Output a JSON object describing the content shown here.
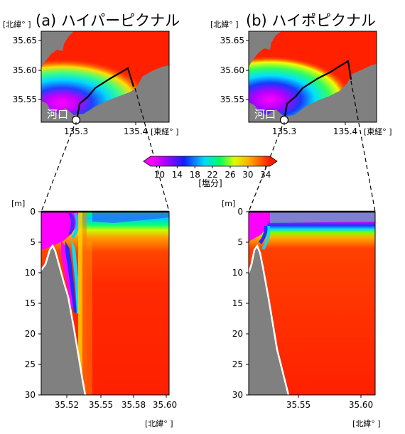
{
  "chart_data": [
    {
      "type": "heatmap",
      "panel": "(a)",
      "title": "(a) ハイパーピクナル",
      "ylabel": "[北緯° ]",
      "xlabel": "[東経° ]",
      "x_ticks": [
        "135.3",
        "135.4"
      ],
      "y_ticks": [
        "35.65",
        "35.60",
        "35.55"
      ],
      "xlim": [
        135.225,
        135.44
      ],
      "ylim": [
        35.525,
        35.665
      ],
      "annotation": "河口",
      "section_line": [
        [
          135.3,
          35.53
        ],
        [
          135.31,
          35.562
        ],
        [
          135.33,
          35.572
        ],
        [
          135.36,
          35.59
        ],
        [
          135.39,
          35.603
        ],
        [
          135.4,
          35.558
        ]
      ]
    },
    {
      "type": "heatmap",
      "panel": "(b)",
      "title": "(b) ハイポピクナル",
      "ylabel": "[北緯° ]",
      "xlabel": "[東経° ]",
      "x_ticks": [
        "135.3",
        "135.4"
      ],
      "y_ticks": [
        "35.65",
        "35.60",
        "35.55"
      ],
      "xlim": [
        135.225,
        135.44
      ],
      "ylim": [
        35.525,
        35.665
      ],
      "annotation": "河口",
      "section_line": [
        [
          135.3,
          35.53
        ],
        [
          135.31,
          35.562
        ],
        [
          135.33,
          35.572
        ],
        [
          135.36,
          35.59
        ],
        [
          135.39,
          35.603
        ],
        [
          135.4,
          35.558
        ]
      ]
    },
    {
      "type": "heatmap",
      "panel": "(a) section",
      "ylabel": "[m]",
      "xlabel": "[北緯° ]",
      "x_ticks": [
        "35.52",
        "35.55",
        "35.58",
        "35.60"
      ],
      "y_ticks": [
        "0",
        "5",
        "10",
        "15",
        "20",
        "25",
        "30"
      ],
      "xlim": [
        35.5,
        35.603
      ],
      "ylim": [
        30,
        0
      ],
      "halocline_depth_m": 2.0
    },
    {
      "type": "heatmap",
      "panel": "(b) section",
      "ylabel": "[m]",
      "xlabel": "[北緯° ]",
      "x_ticks": [
        "35.55",
        "35.60"
      ],
      "y_ticks": [
        "0",
        "5",
        "10",
        "15",
        "20",
        "25",
        "30"
      ],
      "xlim": [
        35.515,
        35.615
      ],
      "ylim": [
        30,
        0
      ],
      "halocline_depth_m": 3.5
    },
    {
      "type": "colorbar",
      "label": "[塩分]",
      "ticks": [
        "10",
        "14",
        "18",
        "22",
        "26",
        "30",
        "34"
      ],
      "range": [
        8,
        35
      ]
    }
  ]
}
